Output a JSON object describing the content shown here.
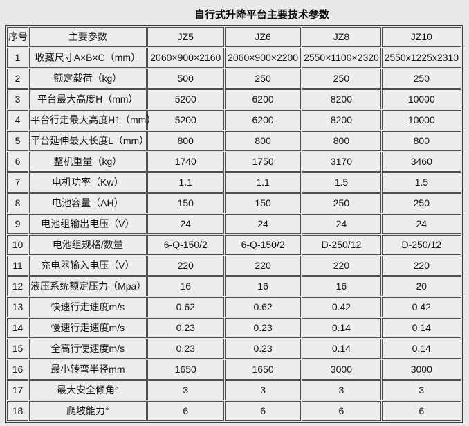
{
  "title": "自行式升降平台主要技术参数",
  "colors": {
    "page_bg": "#e8e9e9",
    "cell_bg": "#ededed",
    "grid_border": "#4e4e4e",
    "outer_border": "#3c3c3c",
    "text": "#141414"
  },
  "table": {
    "headers": [
      "序号",
      "主要参数",
      "JZ5",
      "JZ6",
      "JZ8",
      "JZ10"
    ],
    "rows": [
      {
        "no": "1",
        "param": "收藏尺寸A×B×C（mm）",
        "values": [
          "2060×900×2160",
          "2060×900×2200",
          "2550×1100×2320",
          "2550x1225x2310"
        ]
      },
      {
        "no": "2",
        "param": "额定载荷（kg）",
        "values": [
          "500",
          "250",
          "250",
          "250"
        ]
      },
      {
        "no": "3",
        "param": "平台最大高度H（mm）",
        "values": [
          "5200",
          "6200",
          "8200",
          "10000"
        ]
      },
      {
        "no": "4",
        "param": "平台行走最大高度H1（mm）",
        "values": [
          "5200",
          "6200",
          "8200",
          "10000"
        ]
      },
      {
        "no": "5",
        "param": "平台延伸最大长度L（mm）",
        "values": [
          "800",
          "800",
          "800",
          "800"
        ]
      },
      {
        "no": "6",
        "param": "整机重量（kg）",
        "values": [
          "1740",
          "1750",
          "3170",
          "3460"
        ]
      },
      {
        "no": "7",
        "param": "电机功率（Kw）",
        "values": [
          "1.1",
          "1.1",
          "1.5",
          "1.5"
        ]
      },
      {
        "no": "8",
        "param": "电池容量（AH）",
        "values": [
          "150",
          "150",
          "250",
          "250"
        ]
      },
      {
        "no": "9",
        "param": "电池组输出电压（V）",
        "values": [
          "24",
          "24",
          "24",
          "24"
        ]
      },
      {
        "no": "10",
        "param": "电池组规格/数量",
        "values": [
          "6-Q-150/2",
          "6-Q-150/2",
          "D-250/12",
          "D-250/12"
        ]
      },
      {
        "no": "11",
        "param": "充电器输入电压（V）",
        "values": [
          "220",
          "220",
          "220",
          "220"
        ]
      },
      {
        "no": "12",
        "param": "液压系统额定压力（Mpa）",
        "values": [
          "16",
          "16",
          "16",
          "20"
        ]
      },
      {
        "no": "13",
        "param": "快速行走速度m/s",
        "values": [
          "0.62",
          "0.62",
          "0.42",
          "0.42"
        ]
      },
      {
        "no": "14",
        "param": "慢速行走速度m/s",
        "values": [
          "0.23",
          "0.23",
          "0.14",
          "0.14"
        ]
      },
      {
        "no": "15",
        "param": "全高行使速度m/s",
        "values": [
          "0.23",
          "0.23",
          "0.14",
          "0.14"
        ]
      },
      {
        "no": "16",
        "param": "最小转弯半径mm",
        "values": [
          "1650",
          "1650",
          "3000",
          "3000"
        ]
      },
      {
        "no": "17",
        "param": "最大安全倾角°",
        "values": [
          "3",
          "3",
          "3",
          "3"
        ]
      },
      {
        "no": "18",
        "param": "爬坡能力°",
        "values": [
          "6",
          "6",
          "6",
          "6"
        ]
      }
    ]
  }
}
